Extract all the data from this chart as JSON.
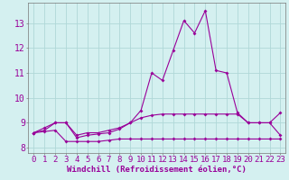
{
  "hours": [
    0,
    1,
    2,
    3,
    4,
    5,
    6,
    7,
    8,
    9,
    10,
    11,
    12,
    13,
    14,
    15,
    16,
    17,
    18,
    19,
    20,
    21,
    22,
    23
  ],
  "line1": [
    8.6,
    8.8,
    9.0,
    9.0,
    8.5,
    8.6,
    8.6,
    8.7,
    8.8,
    9.0,
    9.5,
    11.0,
    10.7,
    11.9,
    13.1,
    12.6,
    13.5,
    11.1,
    11.0,
    9.4,
    9.0,
    9.0,
    9.0,
    8.5
  ],
  "line2": [
    8.6,
    8.7,
    9.0,
    9.0,
    8.4,
    8.5,
    8.55,
    8.6,
    8.75,
    9.0,
    9.2,
    9.3,
    9.35,
    9.35,
    9.35,
    9.35,
    9.35,
    9.35,
    9.35,
    9.35,
    9.0,
    9.0,
    9.0,
    9.4
  ],
  "line3": [
    8.6,
    8.65,
    8.7,
    8.25,
    8.25,
    8.25,
    8.25,
    8.3,
    8.35,
    8.35,
    8.35,
    8.35,
    8.35,
    8.35,
    8.35,
    8.35,
    8.35,
    8.35,
    8.35,
    8.35,
    8.35,
    8.35,
    8.35,
    8.35
  ],
  "line_color": "#990099",
  "bg_color": "#d4f0f0",
  "grid_color": "#b0d8d8",
  "ylabel_ticks": [
    8,
    9,
    10,
    11,
    12,
    13
  ],
  "ylim": [
    7.8,
    13.8
  ],
  "xlabel": "Windchill (Refroidissement éolien,°C)",
  "xlabel_fontsize": 6.5,
  "tick_fontsize": 6.5,
  "ytick_fontsize": 7
}
